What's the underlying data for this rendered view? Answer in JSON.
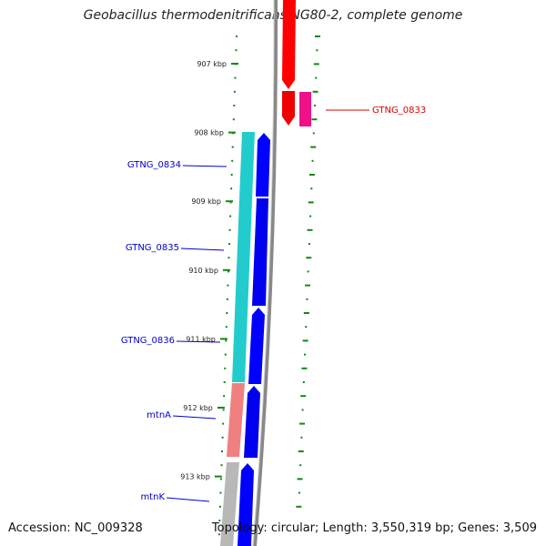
{
  "header": {
    "title": "Geobacillus thermodenitrificans NG80-2, complete genome"
  },
  "footer": {
    "accession": "Accession: NC_009328",
    "topology": "Topology: circular; Length: 3,550,319 bp; Genes: 3,509"
  },
  "scale": {
    "tick_labels": [
      "907 kbp",
      "908 kbp",
      "909 kbp",
      "910 kbp",
      "911 kbp",
      "912 kbp",
      "913 kbp"
    ]
  },
  "genes": [
    {
      "name": "GTNG_0833",
      "color": "#e00000",
      "strand": "+"
    },
    {
      "name": "GTNG_0834",
      "color": "#0000cc",
      "strand": "-"
    },
    {
      "name": "GTNG_0835",
      "color": "#0000cc",
      "strand": "-"
    },
    {
      "name": "GTNG_0836",
      "color": "#0000cc",
      "strand": "-"
    },
    {
      "name": "mtnA",
      "color": "#0000cc",
      "strand": "-"
    },
    {
      "name": "mtnK",
      "color": "#0000cc",
      "strand": "-"
    }
  ],
  "colors": {
    "forward_cds": "#ff0000",
    "forward_cds_alt": "#ee1188",
    "reverse_cds": "#0000ff",
    "cog_cyan": "#22cccc",
    "cog_salmon": "#f08080",
    "cog_gray": "#b8b8b8",
    "backbone": "#888888",
    "gc_ticks": "#118811"
  }
}
